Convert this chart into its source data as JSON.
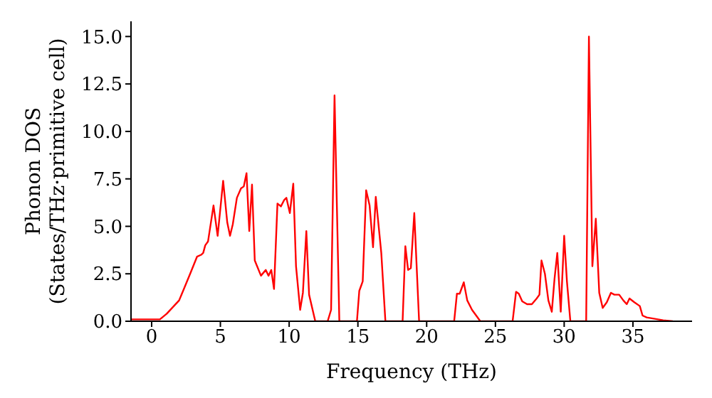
{
  "chart_data": {
    "type": "line",
    "xlabel": "Frequency (THz)",
    "ylabel": "Phonon DOS\n(States/THz·primitive cell)",
    "xlim": [
      -1.5,
      39.3
    ],
    "xticks": [
      0,
      5,
      10,
      15,
      20,
      25,
      30,
      35
    ],
    "ylim": [
      0,
      15.8
    ],
    "yticks": [
      {
        "value": 0,
        "label": "0.0"
      },
      {
        "value": 2.5,
        "label": "2.5"
      },
      {
        "value": 5,
        "label": "5.0"
      },
      {
        "value": 7.5,
        "label": "7.5"
      },
      {
        "value": 10,
        "label": "10.0"
      },
      {
        "value": 12.5,
        "label": "12.5"
      },
      {
        "value": 15,
        "label": "15.0"
      }
    ],
    "grid": false,
    "legend": false,
    "marker": "none",
    "line_style": "solid",
    "x": [
      -1.5,
      0.6,
      1.1,
      2.0,
      2.8,
      3.3,
      3.6,
      3.75,
      3.9,
      4.1,
      4.5,
      4.8,
      5.2,
      5.5,
      5.7,
      5.9,
      6.2,
      6.5,
      6.7,
      6.9,
      7.1,
      7.3,
      7.5,
      7.95,
      8.3,
      8.5,
      8.7,
      8.9,
      9.15,
      9.4,
      9.65,
      9.8,
      10.05,
      10.3,
      10.5,
      10.8,
      11.0,
      11.25,
      11.45,
      11.9,
      12.8,
      13.05,
      13.3,
      13.65,
      14.93,
      15.1,
      15.35,
      15.6,
      15.85,
      16.1,
      16.3,
      16.7,
      17.0,
      18.25,
      18.45,
      18.65,
      18.85,
      19.1,
      19.45,
      22.0,
      22.2,
      22.4,
      22.7,
      22.95,
      23.3,
      23.65,
      23.9,
      26.25,
      26.5,
      26.7,
      26.95,
      27.3,
      27.65,
      28.0,
      28.2,
      28.35,
      28.6,
      28.85,
      29.1,
      29.3,
      29.5,
      29.75,
      30.0,
      30.2,
      30.45,
      31.6,
      31.8,
      32.05,
      32.3,
      32.55,
      32.8,
      33.1,
      33.4,
      33.65,
      34.0,
      34.3,
      34.55,
      34.75,
      35.1,
      35.5,
      35.7,
      36.0,
      37.2,
      37.9
    ],
    "series": [
      {
        "color": "#ff0000",
        "values": [
          0.1,
          0.1,
          0.4,
          1.1,
          2.5,
          3.4,
          3.5,
          3.6,
          4.0,
          4.2,
          6.1,
          4.5,
          7.4,
          5.2,
          4.5,
          5.1,
          6.5,
          7.0,
          7.1,
          7.8,
          4.75,
          7.2,
          3.2,
          2.4,
          2.7,
          2.4,
          2.7,
          1.7,
          6.2,
          6.05,
          6.4,
          6.5,
          5.7,
          7.25,
          2.9,
          0.6,
          1.5,
          4.75,
          1.4,
          0,
          0,
          0.6,
          11.9,
          0,
          0,
          1.6,
          2.1,
          6.9,
          6.1,
          3.9,
          6.55,
          3.6,
          0,
          0,
          3.95,
          2.7,
          2.8,
          5.7,
          0,
          0,
          1.45,
          1.45,
          2.05,
          1.1,
          0.6,
          0.25,
          0,
          0,
          1.55,
          1.45,
          1.05,
          0.9,
          0.9,
          1.2,
          1.4,
          3.2,
          2.5,
          1.1,
          0.5,
          2.25,
          3.6,
          0.5,
          4.5,
          2.1,
          0,
          0,
          15.0,
          2.9,
          5.4,
          1.5,
          0.7,
          1.0,
          1.5,
          1.4,
          1.4,
          1.1,
          0.9,
          1.2,
          1.0,
          0.8,
          0.3,
          0.2,
          0.05,
          0
        ]
      }
    ]
  }
}
